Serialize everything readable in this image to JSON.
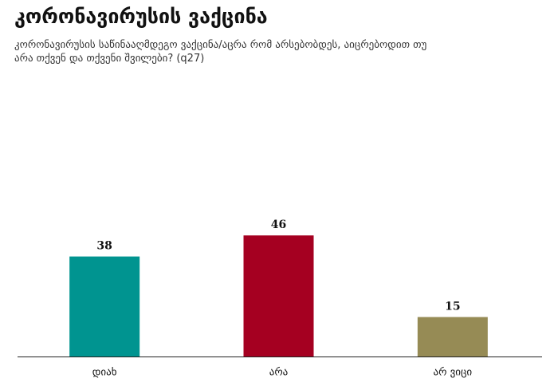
{
  "chart_data": {
    "type": "bar",
    "title": "კორონავირუსის ვაქცინა",
    "subtitle": "კორონავირუსის საწინააღმდეგო ვაქცინა/აცრა რომ არსებობდეს, აიცრებოდით თუ არა თქვენ და თქვენი შვილები? (q27)",
    "categories": [
      "დიახ",
      "არა",
      "არ ვიცი"
    ],
    "values": [
      38,
      46,
      15
    ],
    "colors": [
      "#009490",
      "#a50021",
      "#968b55"
    ]
  }
}
